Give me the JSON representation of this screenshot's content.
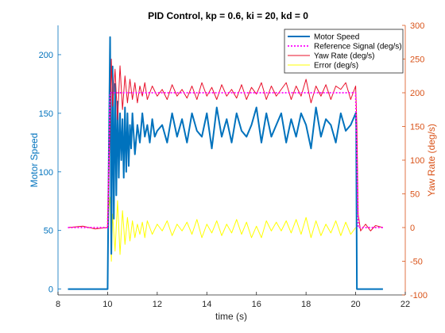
{
  "chart_data": {
    "type": "line",
    "title": "PID Control, kp = 0.6, ki = 20, kd = 0",
    "xlabel": "time (s)",
    "ylabel_left": "Motor Speed",
    "ylabel_right": "Yaw Rate (deg/s)",
    "xlim": [
      8,
      22
    ],
    "ylim_left": [
      -5,
      225
    ],
    "ylim_right": [
      -100,
      300
    ],
    "x_ticks": [
      "8",
      "10",
      "12",
      "14",
      "16",
      "18",
      "20",
      "22"
    ],
    "y_ticks_left": [
      "0",
      "50",
      "100",
      "150",
      "200"
    ],
    "y_ticks_right": [
      "-100",
      "-50",
      "0",
      "50",
      "100",
      "150",
      "200",
      "250",
      "300"
    ],
    "grid": false,
    "legend_position": "top-right",
    "colors": {
      "left_axis": "#0072BD",
      "right_axis": "#D95319",
      "motor_speed": "#0072BD",
      "reference": "#FF00FF",
      "yaw_rate": "#E8102A",
      "error": "#FFFF00"
    },
    "series": [
      {
        "name": "Motor Speed",
        "axis": "left",
        "style": "solid-thick",
        "x": [
          8.4,
          10.0,
          10.05,
          10.1,
          10.15,
          10.2,
          10.25,
          10.3,
          10.35,
          10.4,
          10.45,
          10.5,
          10.55,
          10.6,
          10.65,
          10.7,
          10.75,
          10.8,
          10.85,
          10.9,
          10.95,
          11.0,
          11.1,
          11.2,
          11.3,
          11.4,
          11.5,
          11.6,
          11.7,
          11.8,
          11.9,
          12.0,
          12.2,
          12.4,
          12.6,
          12.8,
          13.0,
          13.2,
          13.4,
          13.6,
          13.8,
          14.0,
          14.2,
          14.4,
          14.6,
          14.8,
          15.0,
          15.2,
          15.4,
          15.6,
          15.8,
          16.0,
          16.2,
          16.4,
          16.6,
          16.8,
          17.0,
          17.2,
          17.4,
          17.6,
          17.8,
          18.0,
          18.2,
          18.4,
          18.6,
          18.8,
          19.0,
          19.2,
          19.4,
          19.6,
          19.8,
          20.0,
          20.02,
          20.05,
          21.1
        ],
        "y": [
          0,
          0,
          120,
          215,
          30,
          190,
          60,
          175,
          80,
          160,
          95,
          150,
          110,
          145,
          95,
          155,
          100,
          150,
          105,
          140,
          120,
          150,
          115,
          140,
          125,
          150,
          130,
          140,
          125,
          145,
          130,
          135,
          140,
          125,
          150,
          130,
          145,
          125,
          150,
          135,
          130,
          150,
          120,
          155,
          130,
          145,
          125,
          150,
          135,
          130,
          140,
          155,
          125,
          150,
          130,
          140,
          150,
          125,
          145,
          130,
          150,
          140,
          120,
          155,
          130,
          145,
          140,
          125,
          150,
          135,
          140,
          150,
          140,
          0,
          0
        ]
      },
      {
        "name": "Reference Signal (deg/s)",
        "axis": "right",
        "style": "dotted",
        "x": [
          8.4,
          10.0,
          10.1,
          20.0,
          20.1,
          21.1
        ],
        "y": [
          0,
          0,
          200,
          200,
          0,
          0
        ]
      },
      {
        "name": "Yaw Rate (deg/s)",
        "axis": "right",
        "style": "solid-thin",
        "x": [
          8.4,
          9.0,
          9.5,
          10.0,
          10.05,
          10.1,
          10.15,
          10.2,
          10.3,
          10.4,
          10.5,
          10.6,
          10.7,
          10.8,
          10.9,
          11.0,
          11.1,
          11.2,
          11.3,
          11.4,
          11.5,
          11.6,
          11.8,
          12.0,
          12.2,
          12.4,
          12.6,
          12.8,
          13.0,
          13.2,
          13.4,
          13.6,
          13.8,
          14.0,
          14.2,
          14.4,
          14.6,
          14.8,
          15.0,
          15.2,
          15.4,
          15.6,
          15.8,
          16.0,
          16.2,
          16.4,
          16.6,
          16.8,
          17.0,
          17.2,
          17.4,
          17.6,
          17.8,
          18.0,
          18.2,
          18.4,
          18.6,
          18.8,
          19.0,
          19.2,
          19.4,
          19.6,
          19.8,
          20.0,
          20.05,
          20.1,
          20.2,
          20.4,
          20.6,
          20.8,
          21.1
        ],
        "y": [
          0,
          2,
          -2,
          0,
          80,
          155,
          250,
          180,
          235,
          160,
          240,
          175,
          225,
          185,
          220,
          190,
          215,
          185,
          210,
          195,
          215,
          190,
          210,
          195,
          205,
          190,
          212,
          195,
          205,
          192,
          210,
          190,
          215,
          195,
          208,
          190,
          212,
          195,
          205,
          192,
          212,
          190,
          208,
          198,
          215,
          190,
          210,
          195,
          205,
          215,
          190,
          210,
          195,
          220,
          185,
          210,
          195,
          212,
          190,
          210,
          205,
          215,
          190,
          210,
          150,
          20,
          -5,
          5,
          -5,
          3,
          0
        ]
      },
      {
        "name": "Error (deg/s)",
        "axis": "right",
        "style": "solid-thin",
        "x": [
          10.0,
          10.05,
          10.1,
          10.15,
          10.2,
          10.3,
          10.4,
          10.5,
          10.6,
          10.7,
          10.8,
          10.9,
          11.0,
          11.1,
          11.2,
          11.3,
          11.4,
          11.5,
          11.6,
          11.8,
          12.0,
          12.2,
          12.4,
          12.6,
          12.8,
          13.0,
          13.2,
          13.4,
          13.6,
          13.8,
          14.0,
          14.2,
          14.4,
          14.6,
          14.8,
          15.0,
          15.2,
          15.4,
          15.6,
          15.8,
          16.0,
          16.2,
          16.4,
          16.6,
          16.8,
          17.0,
          17.2,
          17.4,
          17.6,
          17.8,
          18.0,
          18.2,
          18.4,
          18.6,
          18.8,
          19.0,
          19.2,
          19.4,
          19.6,
          19.8,
          20.0
        ],
        "y": [
          0,
          30,
          45,
          -50,
          20,
          -35,
          40,
          -40,
          25,
          -25,
          15,
          -20,
          10,
          -15,
          5,
          -10,
          8,
          -15,
          10,
          -10,
          5,
          -5,
          10,
          -12,
          5,
          -5,
          8,
          -10,
          12,
          -15,
          5,
          -8,
          10,
          -12,
          5,
          -8,
          12,
          -10,
          8,
          -15,
          2,
          -15,
          10,
          -5,
          8,
          -5,
          10,
          -8,
          12,
          -10,
          15,
          -15,
          10,
          -12,
          5,
          -8,
          10,
          -12,
          8,
          -10,
          0
        ]
      }
    ]
  }
}
